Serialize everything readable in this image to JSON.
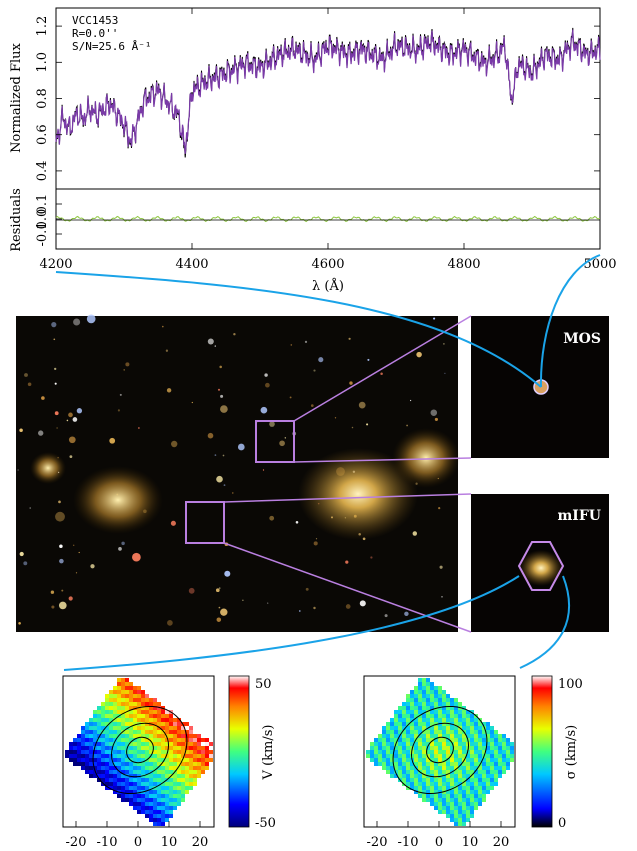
{
  "spectrum": {
    "object": "VCC1453",
    "radius": "R=0.0''",
    "snr": "S/N=25.6 Å⁻¹",
    "ylabel": "Normalized Flux",
    "resid_label": "Residuals",
    "xlabel": "λ (Å)",
    "x_ticks": [
      "4200",
      "4400",
      "4600",
      "4800",
      "5000"
    ],
    "y_ticks": [
      "0.4",
      "0.6",
      "0.8",
      "1.0",
      "1.2"
    ],
    "resid_ticks": [
      "0.1",
      "0.0",
      "-0.1"
    ]
  },
  "chart_data": {
    "type": "line",
    "x_range": [
      4200,
      5000
    ],
    "ylim": [
      0.3,
      1.3
    ],
    "resid_ylim": [
      -0.2,
      0.2
    ],
    "series": [
      {
        "role": "observed",
        "color": "#000000",
        "x": [
          4200,
          4210,
          4220,
          4230,
          4240,
          4250,
          4260,
          4280,
          4300,
          4310,
          4330,
          4350,
          4380,
          4390,
          4400,
          4420,
          4450,
          4480,
          4500,
          4530,
          4550,
          4580,
          4600,
          4630,
          4650,
          4680,
          4700,
          4730,
          4750,
          4780,
          4800,
          4830,
          4850,
          4860,
          4870,
          4880,
          4900,
          4920,
          4940,
          4960,
          4980,
          5000
        ],
        "y": [
          0.55,
          0.7,
          0.62,
          0.72,
          0.68,
          0.75,
          0.7,
          0.78,
          0.65,
          0.55,
          0.8,
          0.85,
          0.7,
          0.5,
          0.85,
          0.9,
          0.95,
          1.0,
          0.98,
          1.05,
          1.08,
          1.02,
          1.1,
          1.05,
          1.08,
          1.02,
          1.1,
          1.07,
          1.12,
          1.05,
          1.08,
          1.0,
          1.05,
          1.1,
          0.78,
          1.0,
          0.95,
          1.05,
          1.02,
          1.12,
          1.05,
          1.08
        ]
      },
      {
        "role": "model",
        "color": "#7a3aa8",
        "x": [
          4200,
          4210,
          4220,
          4230,
          4240,
          4250,
          4260,
          4280,
          4300,
          4310,
          4330,
          4350,
          4380,
          4390,
          4400,
          4420,
          4450,
          4480,
          4500,
          4530,
          4550,
          4580,
          4600,
          4630,
          4650,
          4680,
          4700,
          4730,
          4750,
          4780,
          4800,
          4830,
          4850,
          4860,
          4870,
          4880,
          4900,
          4920,
          4940,
          4960,
          4980,
          5000
        ],
        "y": [
          0.56,
          0.69,
          0.63,
          0.71,
          0.69,
          0.74,
          0.71,
          0.77,
          0.66,
          0.56,
          0.79,
          0.84,
          0.71,
          0.52,
          0.84,
          0.89,
          0.94,
          0.99,
          0.97,
          1.04,
          1.07,
          1.01,
          1.09,
          1.04,
          1.07,
          1.01,
          1.09,
          1.06,
          1.11,
          1.04,
          1.07,
          0.99,
          1.04,
          1.09,
          0.79,
          0.99,
          0.94,
          1.04,
          1.01,
          1.11,
          1.04,
          1.07
        ]
      },
      {
        "role": "residuals",
        "color": "#8cc63f",
        "x": [
          4200,
          4300,
          4400,
          4500,
          4600,
          4700,
          4800,
          4900,
          5000
        ],
        "y": [
          0.0,
          -0.02,
          0.02,
          0.0,
          0.01,
          -0.01,
          0.0,
          0.02,
          0.01
        ]
      }
    ]
  },
  "image": {
    "mos_label": "MOS",
    "mifu_label": "mIFU"
  },
  "velocity_map": {
    "cbar_label": "V (km/s)",
    "cbar_max": "50",
    "cbar_min": "-50",
    "x_ticks": [
      "-20",
      "-10",
      "0",
      "10",
      "20"
    ]
  },
  "dispersion_map": {
    "cbar_label": "σ (km/s)",
    "cbar_max": "100",
    "cbar_min": "0",
    "x_ticks": [
      "-20",
      "-10",
      "0",
      "10",
      "20"
    ]
  },
  "colors": {
    "violet": "#b97fe0",
    "blue": "#1aa3e8",
    "model_line": "#7a3aa8",
    "residuals": "#8cc63f"
  }
}
